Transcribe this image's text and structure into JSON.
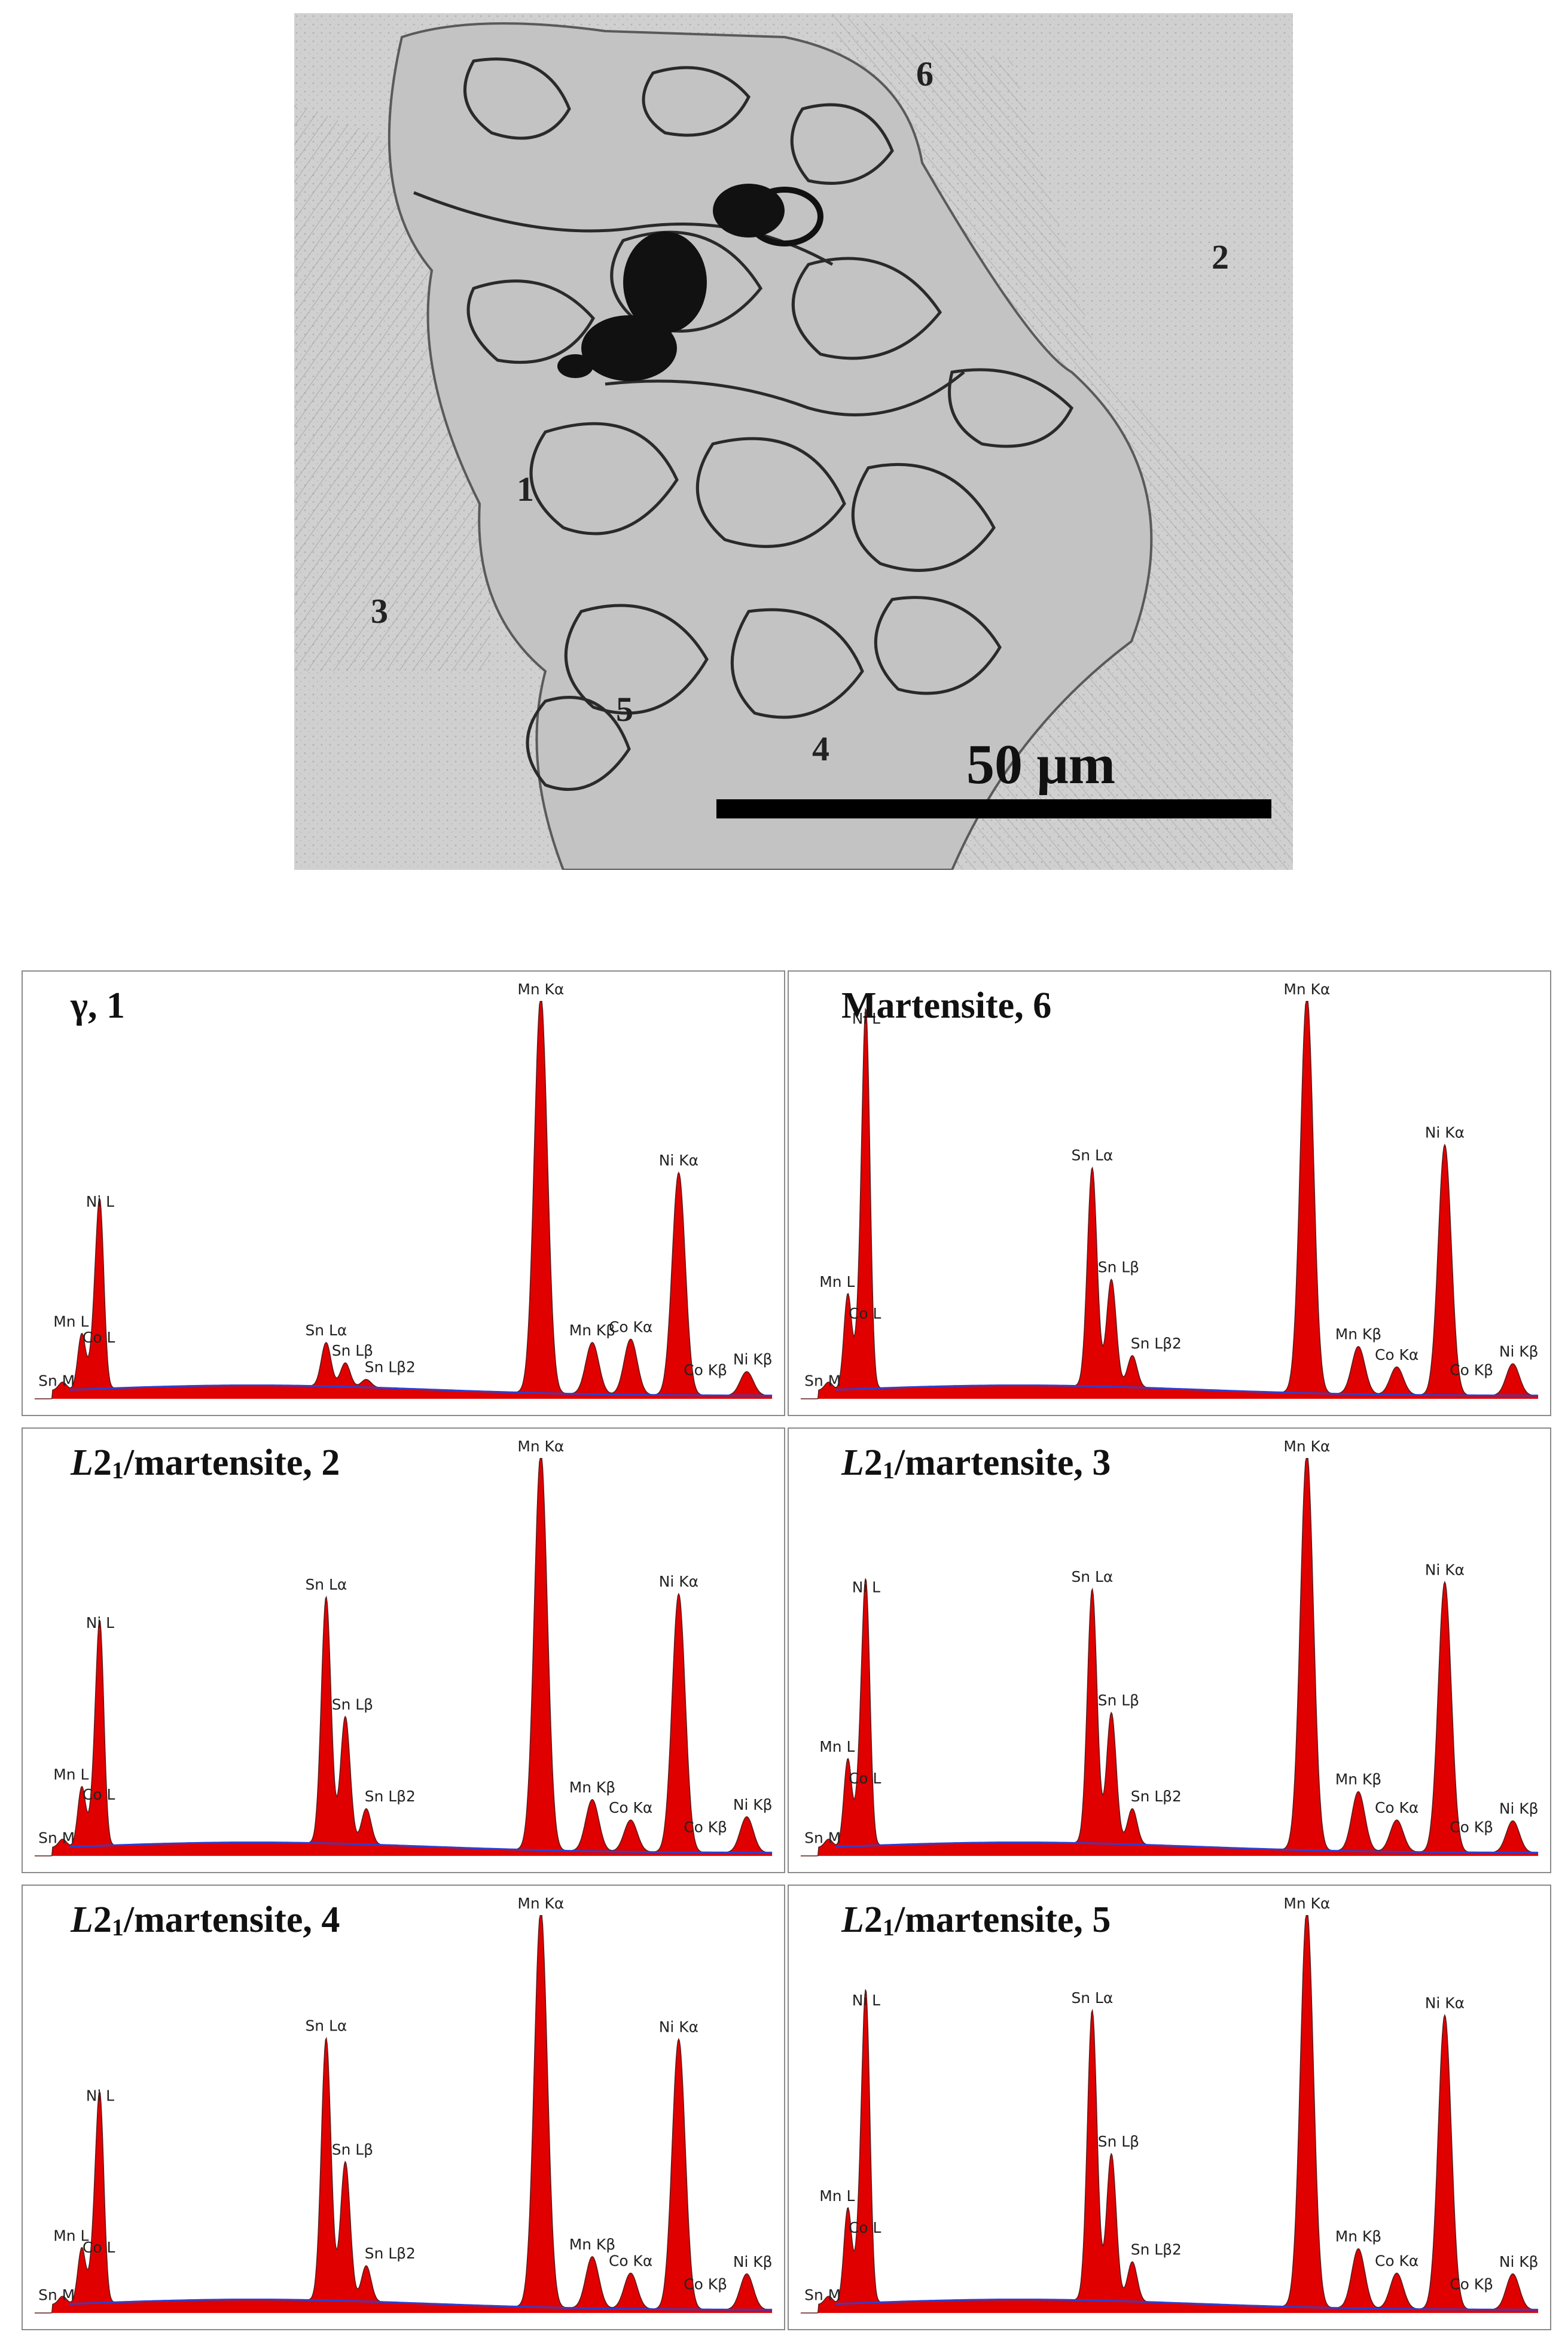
{
  "micrograph": {
    "region_labels": [
      "1",
      "2",
      "3",
      "4",
      "5",
      "6"
    ],
    "scale_bar_text": "50 μm"
  },
  "chart_data": [
    {
      "type": "area",
      "title": "γ, 1",
      "x": [
        "Sn M",
        "Mn L",
        "Co L",
        "Ni L",
        "Sn Lα",
        "Sn Lβ",
        "Sn Lβ2",
        "Mn Kα",
        "Mn Kβ",
        "Co Kα",
        "Ni Kα",
        "Co Kβ",
        "Ni Kβ"
      ],
      "series": [
        {
          "values": [
            2,
            14,
            12,
            44,
            11,
            6,
            2,
            100,
            13,
            14,
            56,
            0,
            6
          ]
        }
      ],
      "ylim": [
        0,
        100
      ],
      "colors": {
        "spectrum": "#e00000",
        "background": "#2f3fd0"
      }
    },
    {
      "type": "area",
      "title": "Martensite, 6",
      "x": [
        "Sn M",
        "Mn L",
        "Co L",
        "Ni L",
        "Sn Lα",
        "Sn Lβ",
        "Sn Lβ2",
        "Mn Kα",
        "Mn Kβ",
        "Co Kα",
        "Ni Kα",
        "Co Kβ",
        "Ni Kβ"
      ],
      "series": [
        {
          "values": [
            2,
            24,
            18,
            90,
            55,
            27,
            8,
            100,
            12,
            7,
            63,
            0,
            8
          ]
        }
      ],
      "ylim": [
        0,
        100
      ],
      "colors": {
        "spectrum": "#e00000",
        "background": "#2f3fd0"
      }
    },
    {
      "type": "area",
      "title": "L21/martensite, 2",
      "x": [
        "Sn M",
        "Mn L",
        "Co L",
        "Ni L",
        "Sn Lα",
        "Sn Lβ",
        "Sn Lβ2",
        "Mn Kα",
        "Mn Kβ",
        "Co Kα",
        "Ni Kα",
        "Co Kβ",
        "Ni Kβ"
      ],
      "series": [
        {
          "values": [
            2,
            15,
            12,
            53,
            62,
            32,
            9,
            100,
            13,
            8,
            65,
            0,
            9
          ]
        }
      ],
      "ylim": [
        0,
        100
      ],
      "colors": {
        "spectrum": "#e00000",
        "background": "#2f3fd0"
      }
    },
    {
      "type": "area",
      "title": "L21/martensite, 3",
      "x": [
        "Sn M",
        "Mn L",
        "Co L",
        "Ni L",
        "Sn Lα",
        "Sn Lβ",
        "Sn Lβ2",
        "Mn Kα",
        "Mn Kβ",
        "Co Kα",
        "Ni Kα",
        "Co Kβ",
        "Ni Kβ"
      ],
      "series": [
        {
          "values": [
            2,
            22,
            16,
            62,
            64,
            33,
            9,
            100,
            15,
            8,
            68,
            0,
            8
          ]
        }
      ],
      "ylim": [
        0,
        100
      ],
      "colors": {
        "spectrum": "#e00000",
        "background": "#2f3fd0"
      }
    },
    {
      "type": "area",
      "title": "L21/martensite, 4",
      "x": [
        "Sn M",
        "Mn L",
        "Co L",
        "Ni L",
        "Sn Lα",
        "Sn Lβ",
        "Sn Lβ2",
        "Mn Kα",
        "Mn Kβ",
        "Co Kα",
        "Ni Kα",
        "Co Kβ",
        "Ni Kβ"
      ],
      "series": [
        {
          "values": [
            2,
            14,
            13,
            49,
            66,
            35,
            9,
            100,
            13,
            9,
            68,
            0,
            9
          ]
        }
      ],
      "ylim": [
        0,
        100
      ],
      "colors": {
        "spectrum": "#e00000",
        "background": "#2f3fd0"
      }
    },
    {
      "type": "area",
      "title": "L21/martensite, 5",
      "x": [
        "Sn M",
        "Mn L",
        "Co L",
        "Ni L",
        "Sn Lα",
        "Sn Lβ",
        "Sn Lβ2",
        "Mn Kα",
        "Mn Kβ",
        "Co Kα",
        "Ni Kα",
        "Co Kβ",
        "Ni Kβ"
      ],
      "series": [
        {
          "values": [
            2,
            24,
            18,
            73,
            73,
            37,
            10,
            100,
            15,
            9,
            74,
            0,
            9
          ]
        }
      ],
      "ylim": [
        0,
        100
      ],
      "colors": {
        "spectrum": "#e00000",
        "background": "#2f3fd0"
      }
    }
  ]
}
